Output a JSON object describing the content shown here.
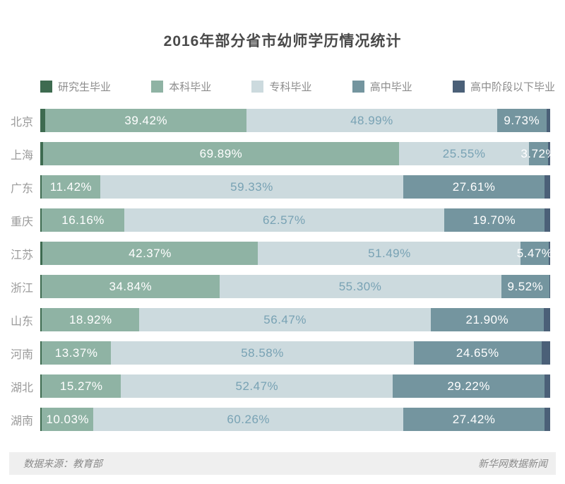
{
  "title": "2016年部分省市幼师学历情况统计",
  "legend": [
    {
      "label": "研究生毕业",
      "color": "#3e6b50"
    },
    {
      "label": "本科毕业",
      "color": "#8fb3a4"
    },
    {
      "label": "专科毕业",
      "color": "#ccdade"
    },
    {
      "label": "高中毕业",
      "color": "#74959f"
    },
    {
      "label": "高中阶段以下毕业",
      "color": "#4b6078"
    }
  ],
  "footer": {
    "source": "数据来源：教育部",
    "credit": "新华网数据新闻"
  },
  "chart_data": {
    "type": "bar",
    "orientation": "horizontal",
    "stacked": true,
    "unit": "%",
    "series_names": [
      "研究生毕业",
      "本科毕业",
      "专科毕业",
      "高中毕业",
      "高中阶段以下毕业"
    ],
    "categories": [
      "北京",
      "上海",
      "广东",
      "重庆",
      "江苏",
      "浙江",
      "山东",
      "河南",
      "湖北",
      "湖南"
    ],
    "rows": [
      {
        "category": "北京",
        "values": [
          1.0,
          39.42,
          48.99,
          9.73,
          0.7
        ],
        "labels": [
          "",
          "39.42%",
          "48.99%",
          "9.73%",
          ""
        ]
      },
      {
        "category": "上海",
        "values": [
          0.55,
          69.89,
          25.55,
          3.72,
          0.4
        ],
        "labels": [
          "",
          "69.89%",
          "25.55%",
          "3.72%",
          ""
        ]
      },
      {
        "category": "广东",
        "values": [
          0.3,
          11.42,
          59.33,
          27.61,
          1.1
        ],
        "labels": [
          "",
          "11.42%",
          "59.33%",
          "27.61%",
          ""
        ]
      },
      {
        "category": "重庆",
        "values": [
          0.3,
          16.16,
          62.57,
          19.7,
          1.1
        ],
        "labels": [
          "",
          "16.16%",
          "62.57%",
          "19.70%",
          ""
        ]
      },
      {
        "category": "江苏",
        "values": [
          0.35,
          42.37,
          51.49,
          5.47,
          0.3
        ],
        "labels": [
          "",
          "42.37%",
          "51.49%",
          "5.47%",
          ""
        ]
      },
      {
        "category": "浙江",
        "values": [
          0.3,
          34.84,
          55.3,
          9.52,
          0.1
        ],
        "labels": [
          "",
          "34.84%",
          "55.30%",
          "9.52%",
          ""
        ]
      },
      {
        "category": "山东",
        "values": [
          0.3,
          18.92,
          56.47,
          21.9,
          1.25
        ],
        "labels": [
          "",
          "18.92%",
          "56.47%",
          "21.90%",
          ""
        ]
      },
      {
        "category": "河南",
        "values": [
          0.3,
          13.37,
          58.58,
          24.65,
          1.7
        ],
        "labels": [
          "",
          "13.37%",
          "58.58%",
          "24.65%",
          ""
        ]
      },
      {
        "category": "湖北",
        "values": [
          0.3,
          15.27,
          52.47,
          29.22,
          1.1
        ],
        "labels": [
          "",
          "15.27%",
          "52.47%",
          "29.22%",
          ""
        ]
      },
      {
        "category": "湖南",
        "values": [
          0.3,
          10.03,
          60.26,
          27.42,
          1.1
        ],
        "labels": [
          "",
          "10.03%",
          "60.26%",
          "27.42%",
          ""
        ]
      }
    ],
    "note": "Unlabeled 研究生毕业 and 高中阶段以下毕业 sliver values estimated from segment pixel widths; labeled percentages read directly from chart."
  }
}
